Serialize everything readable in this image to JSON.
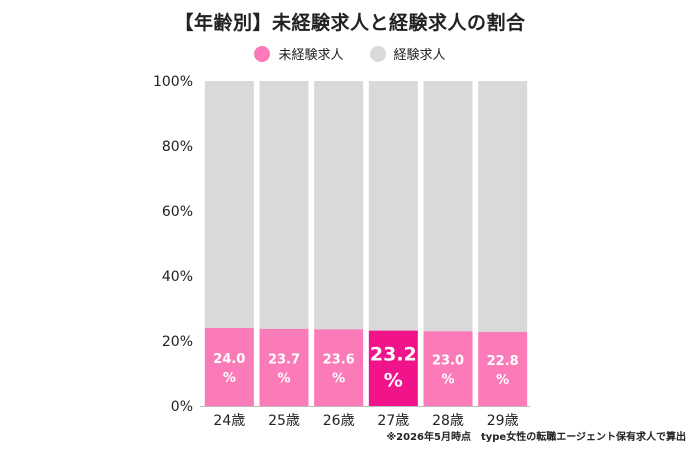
{
  "title": "【年齢別】未経験求人と経験求人の割合",
  "legend": {
    "inexperienced_label": "未経験求人",
    "experienced_label": "経験求人"
  },
  "colors": {
    "inexperienced": "#fb7bb8",
    "highlight": "#f0138a",
    "experienced": "#d9d9d9"
  },
  "footnote": "※2026年5月時点　type女性の転職エージェント保有求人で算出",
  "chart_data": {
    "type": "bar",
    "stacked": true,
    "categories": [
      "24歳",
      "25歳",
      "26歳",
      "27歳",
      "28歳",
      "29歳"
    ],
    "series": [
      {
        "name": "未経験求人",
        "values": [
          24.0,
          23.7,
          23.6,
          23.2,
          23.0,
          22.8
        ]
      },
      {
        "name": "経験求人",
        "values": [
          76.0,
          76.3,
          76.4,
          76.8,
          77.0,
          77.2
        ]
      }
    ],
    "data_labels": [
      "24.0\n%",
      "23.7\n%",
      "23.6\n%",
      "23.2\n%",
      "23.0\n%",
      "22.8\n%"
    ],
    "highlight_category": "27歳",
    "yticks": [
      "0%",
      "20%",
      "40%",
      "60%",
      "80%",
      "100%"
    ],
    "ylim": [
      0,
      100
    ],
    "grid": false,
    "legend_position": "top"
  }
}
